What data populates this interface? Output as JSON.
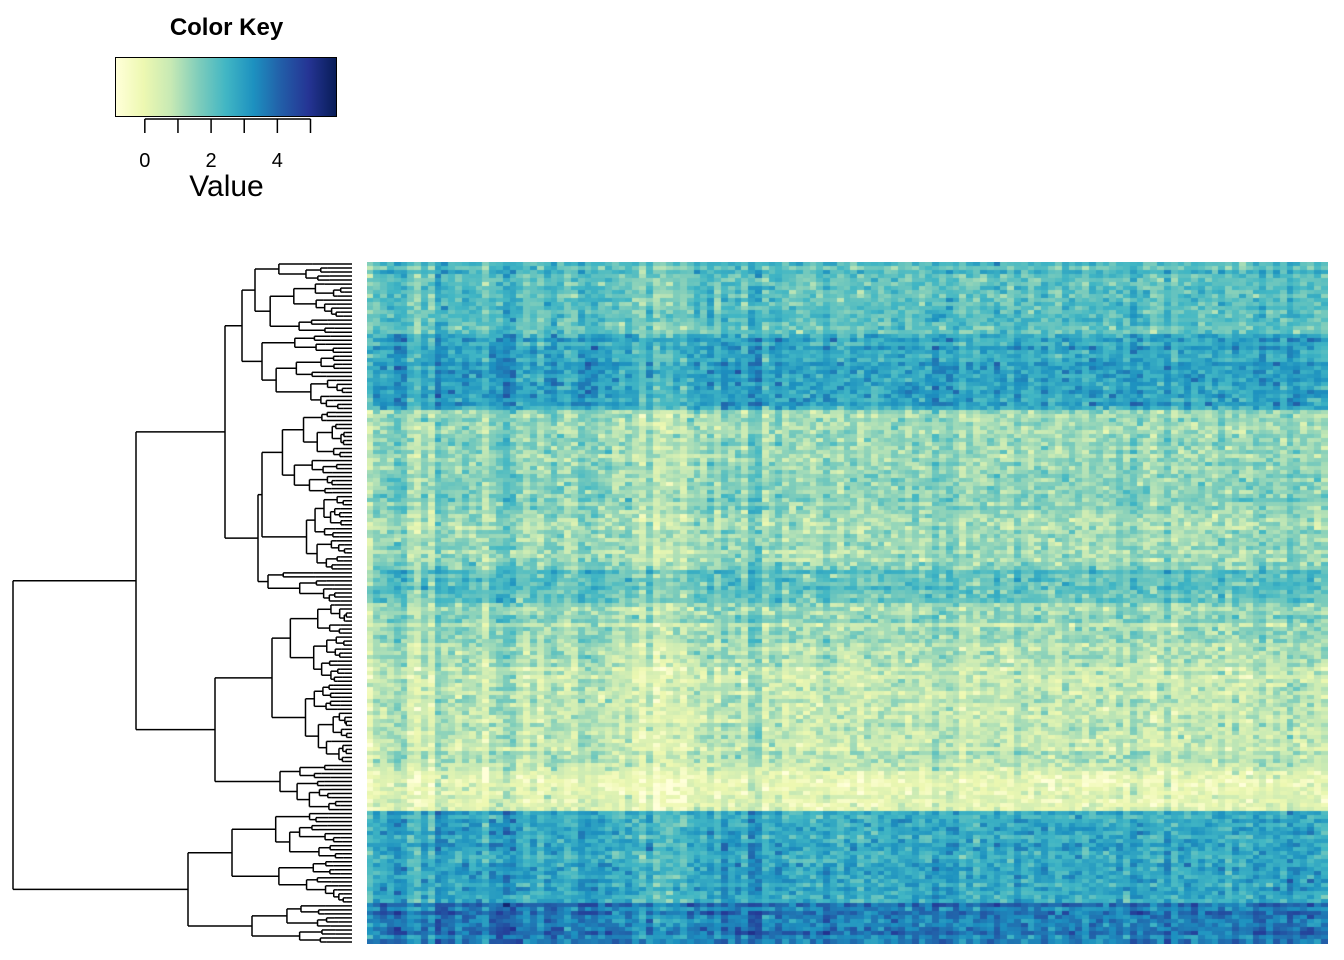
{
  "color_key": {
    "title": "Color Key",
    "axis_label": "Value",
    "tick_labels": [
      "0",
      "2",
      "4"
    ],
    "tick_values": [
      0,
      2,
      4
    ],
    "range": [
      -0.9,
      5.8
    ],
    "colors": [
      "#ffffd9",
      "#edf8b1",
      "#c7e9b4",
      "#7fcdbb",
      "#41b6c4",
      "#1d91c0",
      "#225ea8",
      "#253494",
      "#081d58"
    ]
  },
  "chart_data": {
    "type": "heatmap",
    "title": "",
    "xlabel": "",
    "ylabel": "",
    "value_range": [
      -0.9,
      5.8
    ],
    "n_rows": 170,
    "n_cols": 141,
    "legend_position": "top-left",
    "row_dendrogram": true,
    "col_dendrogram": false,
    "row_blocks": [
      {
        "rows": [
          0,
          18
        ],
        "mean": 2.0
      },
      {
        "rows": [
          18,
          37
        ],
        "mean": 2.8
      },
      {
        "rows": [
          37,
          77
        ],
        "mean": 1.3
      },
      {
        "rows": [
          77,
          85
        ],
        "mean": 2.0
      },
      {
        "rows": [
          85,
          100
        ],
        "mean": 1.2
      },
      {
        "rows": [
          100,
          127
        ],
        "mean": 0.8
      },
      {
        "rows": [
          127,
          137
        ],
        "mean": 0.2
      },
      {
        "rows": [
          137,
          160
        ],
        "mean": 2.7
      },
      {
        "rows": [
          160,
          170
        ],
        "mean": 3.6
      }
    ],
    "column_groups": [
      {
        "cols": [
          0,
          65
        ],
        "emphasis": 1.4
      },
      {
        "cols": [
          65,
          141
        ],
        "emphasis": 0.6
      }
    ]
  }
}
